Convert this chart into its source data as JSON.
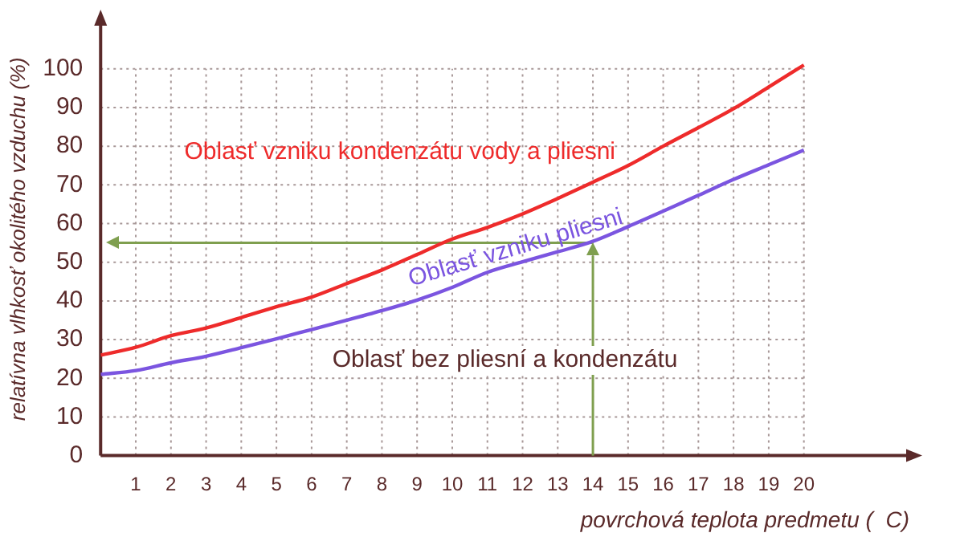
{
  "chart_data": {
    "type": "line",
    "xlabel": "povrchová teplota predmetu (  C)",
    "ylabel": "relatívna vlhkosť okolitého vzduchu (%)",
    "x": [
      0,
      1,
      2,
      3,
      4,
      5,
      6,
      7,
      8,
      9,
      10,
      11,
      12,
      13,
      14,
      15,
      16,
      17,
      18,
      19,
      20
    ],
    "series": [
      {
        "color": "#ee2b2b",
        "values": [
          26,
          28,
          31,
          33,
          35.7,
          38.5,
          41,
          44.5,
          48,
          52,
          56,
          59,
          62.5,
          66.5,
          70.7,
          75,
          80,
          84.8,
          89.7,
          95.3,
          101
        ]
      },
      {
        "color": "#7b55e0",
        "values": [
          21,
          22,
          24,
          25.7,
          27.9,
          30.2,
          32.6,
          35,
          37.5,
          40.2,
          43.5,
          47.4,
          50.1,
          52.7,
          55.4,
          59.2,
          63.2,
          67.3,
          71.4,
          75.2,
          79
        ]
      }
    ],
    "xlim": [
      0,
      23
    ],
    "ylim": [
      0,
      112
    ],
    "xticks": [
      {
        "value": 0,
        "label": null
      },
      1,
      2,
      3,
      4,
      5,
      6,
      7,
      8,
      9,
      10,
      11,
      12,
      13,
      14,
      15,
      16,
      17,
      18,
      19,
      20
    ],
    "yticks": [
      0,
      10,
      20,
      30,
      40,
      50,
      60,
      70,
      80,
      90,
      100
    ],
    "grid": true,
    "legend": false,
    "marker": "none",
    "line_style": "solid",
    "ref_lines": [
      {
        "axis": "y",
        "value": 55,
        "color": "#7f9f4f"
      },
      {
        "axis": "x",
        "value": 14,
        "color": "#7f9f4f"
      }
    ],
    "annotations": [
      "Oblasť vzniku kondenzátu vody a pliesni",
      {
        "text": "Oblasť vzniku pliesni",
        "x": 11.8,
        "y": 53.6
      },
      "Oblasť bez pliesní a kondenzátu"
    ]
  }
}
